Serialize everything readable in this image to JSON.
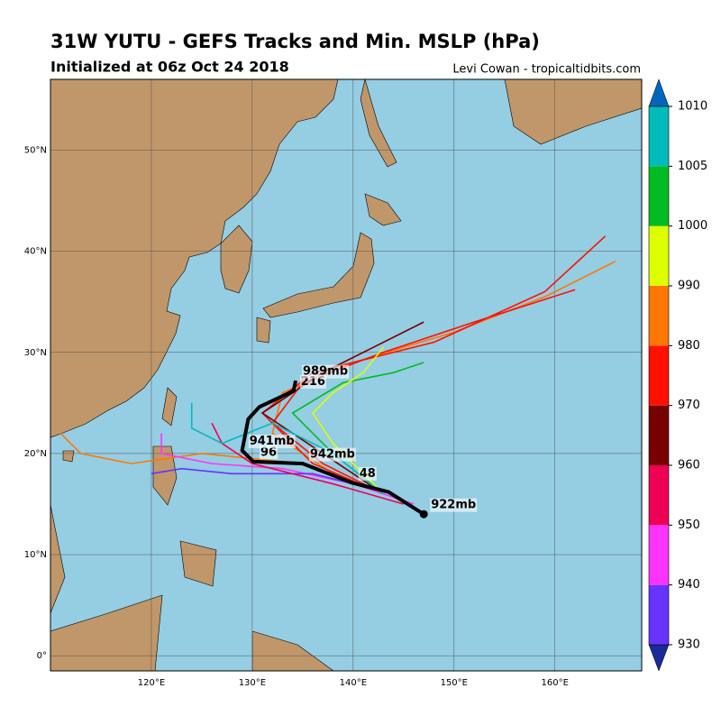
{
  "header": {
    "title": "31W YUTU - GEFS Tracks and Min. MSLP (hPa)",
    "subtitle": "Initialized at 06z Oct 24 2018",
    "credit": "Levi Cowan - tropicaltidbits.com"
  },
  "map": {
    "xlim": [
      110,
      168.6
    ],
    "ylim": [
      -1.5,
      57
    ],
    "xticks": [
      {
        "value": 120,
        "label": "120°E"
      },
      {
        "value": 130,
        "label": "130°E"
      },
      {
        "value": 140,
        "label": "140°E"
      },
      {
        "value": 150,
        "label": "150°E"
      },
      {
        "value": 160,
        "label": "160°E"
      }
    ],
    "yticks": [
      {
        "value": 0,
        "label": "0°"
      },
      {
        "value": 10,
        "label": "10°N"
      },
      {
        "value": 20,
        "label": "20°N"
      },
      {
        "value": 30,
        "label": "30°N"
      },
      {
        "value": 40,
        "label": "40°N"
      },
      {
        "value": 50,
        "label": "50°N"
      }
    ],
    "tracks": [
      {
        "color": "#ff7700",
        "lon": [
          143,
          138,
          132,
          133,
          140,
          150,
          159,
          166
        ],
        "lat": [
          16,
          18,
          22,
          26,
          29,
          32,
          35.5,
          39
        ]
      },
      {
        "color": "#ff1100",
        "lon": [
          143,
          137,
          132,
          135,
          143,
          152,
          162
        ],
        "lat": [
          16,
          19,
          23,
          27,
          30,
          33,
          36.2
        ]
      },
      {
        "color": "#ff1100",
        "lon": [
          143,
          136,
          131,
          136,
          148,
          159,
          165
        ],
        "lat": [
          16,
          19,
          24,
          28,
          31,
          36,
          41.5
        ]
      },
      {
        "color": "#770000",
        "lon": [
          143,
          137,
          131,
          137,
          142,
          147
        ],
        "lat": [
          16,
          20,
          24,
          28,
          30.5,
          33
        ]
      },
      {
        "color": "#00bb22",
        "lon": [
          143,
          138,
          134,
          139,
          144,
          147
        ],
        "lat": [
          16,
          20,
          24,
          27,
          28,
          29
        ]
      },
      {
        "color": "#ff7700",
        "lon": [
          143,
          135,
          125,
          118,
          113,
          111
        ],
        "lat": [
          16,
          19,
          20,
          19,
          20,
          22
        ]
      },
      {
        "color": "#ff33ff",
        "lon": [
          146,
          140,
          133,
          126,
          121,
          121
        ],
        "lat": [
          15,
          17,
          18.5,
          19,
          20,
          22
        ]
      },
      {
        "color": "#6633ff",
        "lon": [
          144,
          136,
          128,
          123,
          120
        ],
        "lat": [
          16,
          18,
          18,
          18.5,
          18
        ]
      },
      {
        "color": "#ee0055",
        "lon": [
          145,
          138,
          130,
          127,
          126
        ],
        "lat": [
          15,
          17,
          19,
          21,
          23
        ]
      },
      {
        "color": "#ddff00",
        "lon": [
          143,
          138,
          136,
          138,
          141,
          143
        ],
        "lat": [
          16,
          21,
          24,
          26,
          28,
          30.5
        ]
      },
      {
        "color": "#00bbbb",
        "lon": [
          143,
          138,
          132,
          127,
          124,
          124
        ],
        "lat": [
          16,
          20,
          23,
          21,
          22.5,
          25
        ]
      }
    ],
    "mean_track": {
      "color": "#000000",
      "lon": [
        147,
        143.5,
        139.9,
        135,
        130.1,
        129,
        129.6,
        130.7,
        134.1,
        134.3
      ],
      "lat": [
        14,
        16.2,
        17.1,
        19,
        19.2,
        20.3,
        23.4,
        24.6,
        26.2,
        27.2
      ],
      "labels": [
        "922mb",
        null,
        "48",
        "942mb",
        "96",
        "941mb",
        null,
        null,
        "216",
        "989mb"
      ]
    }
  },
  "colorbar": {
    "bounds": [
      930,
      940,
      950,
      960,
      970,
      980,
      990,
      1000,
      1005,
      1010
    ],
    "colors": [
      "#6633ff",
      "#ff33ff",
      "#ee0055",
      "#770000",
      "#ff1100",
      "#ff7700",
      "#ddff00",
      "#00bb22",
      "#00bbbb"
    ],
    "under_color": "#1a2a99",
    "over_color": "#0066bb"
  }
}
